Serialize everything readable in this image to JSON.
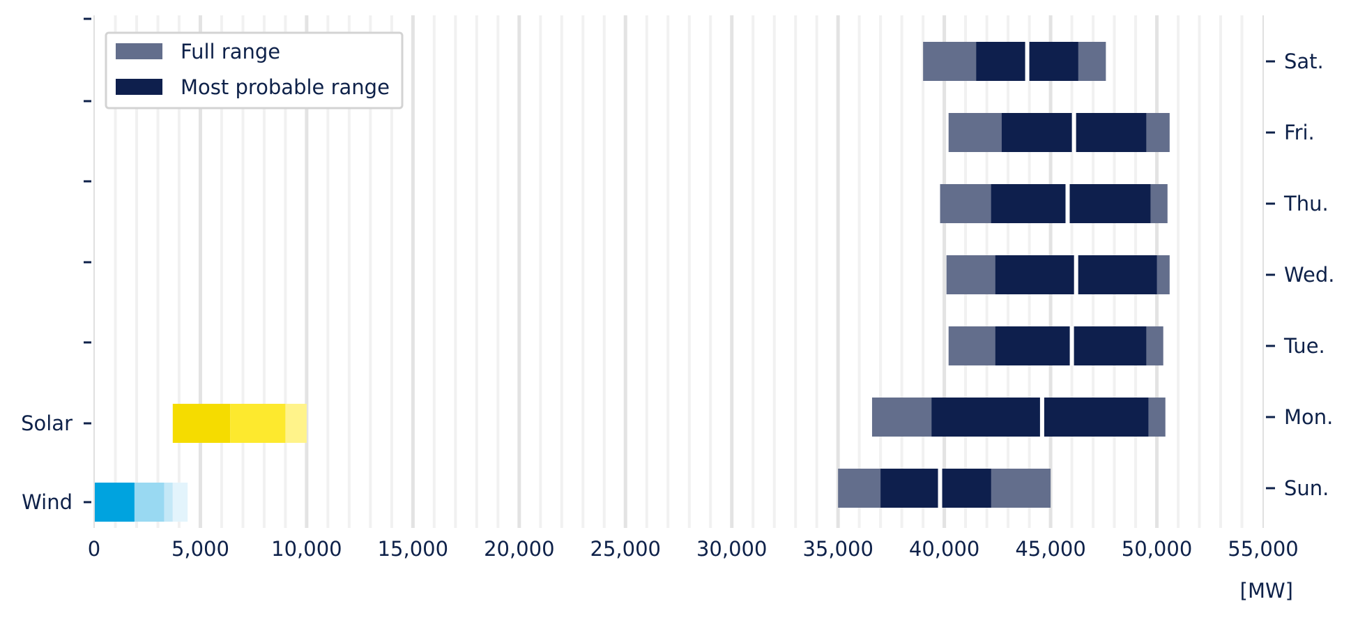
{
  "chart_data": {
    "type": "bar",
    "orientation": "horizontal",
    "unit_label": "[MW]",
    "xlim": [
      0,
      55000
    ],
    "x_ticks": [
      0,
      5000,
      10000,
      15000,
      20000,
      25000,
      30000,
      35000,
      40000,
      45000,
      50000,
      55000
    ],
    "x_tick_labels": [
      "0",
      "5,000",
      "10,000",
      "15,000",
      "20,000",
      "25,000",
      "30,000",
      "35,000",
      "40,000",
      "45,000",
      "50,000",
      "55,000"
    ],
    "grid": "vertical",
    "legend_position": "top-left",
    "legend": [
      {
        "label": "Full range",
        "color": "#636e8c"
      },
      {
        "label": "Most probable range",
        "color": "#0e1f4d"
      }
    ],
    "left_axis_labels": [
      "Wind",
      "Solar"
    ],
    "right_axis_labels": [
      "Sun.",
      "Mon.",
      "Tue.",
      "Wed.",
      "Thu.",
      "Fri.",
      "Sat."
    ],
    "demand_series": [
      {
        "day": "Sun.",
        "full_range": [
          35000,
          45000
        ],
        "probable_range": [
          37000,
          42200
        ],
        "split": 39800
      },
      {
        "day": "Mon.",
        "full_range": [
          36600,
          50400
        ],
        "probable_range": [
          39400,
          49600
        ],
        "split": 44600
      },
      {
        "day": "Tue.",
        "full_range": [
          40200,
          50300
        ],
        "probable_range": [
          42400,
          49500
        ],
        "split": 46000
      },
      {
        "day": "Wed.",
        "full_range": [
          40100,
          50600
        ],
        "probable_range": [
          42400,
          50000
        ],
        "split": 46200
      },
      {
        "day": "Thu.",
        "full_range": [
          39800,
          50500
        ],
        "probable_range": [
          42200,
          49700
        ],
        "split": 45800
      },
      {
        "day": "Fri.",
        "full_range": [
          40200,
          50600
        ],
        "probable_range": [
          42700,
          49500
        ],
        "split": 46100
      },
      {
        "day": "Sat.",
        "full_range": [
          39000,
          47600
        ],
        "probable_range": [
          41500,
          46300
        ],
        "split": 43900
      }
    ],
    "renewables_series": [
      {
        "name": "Solar",
        "segments": [
          {
            "from": 3700,
            "to": 6400,
            "color": "#f5dc00"
          },
          {
            "from": 6400,
            "to": 9000,
            "color": "#fde92e"
          },
          {
            "from": 9000,
            "to": 10000,
            "color": "#fff38a"
          }
        ]
      },
      {
        "name": "Wind",
        "segments": [
          {
            "from": 0,
            "to": 1900,
            "color": "#00a3df"
          },
          {
            "from": 1900,
            "to": 3300,
            "color": "#99d9f2"
          },
          {
            "from": 3300,
            "to": 3700,
            "color": "#c4e8f7"
          },
          {
            "from": 3700,
            "to": 4400,
            "color": "#e3f4fc"
          }
        ]
      }
    ]
  }
}
